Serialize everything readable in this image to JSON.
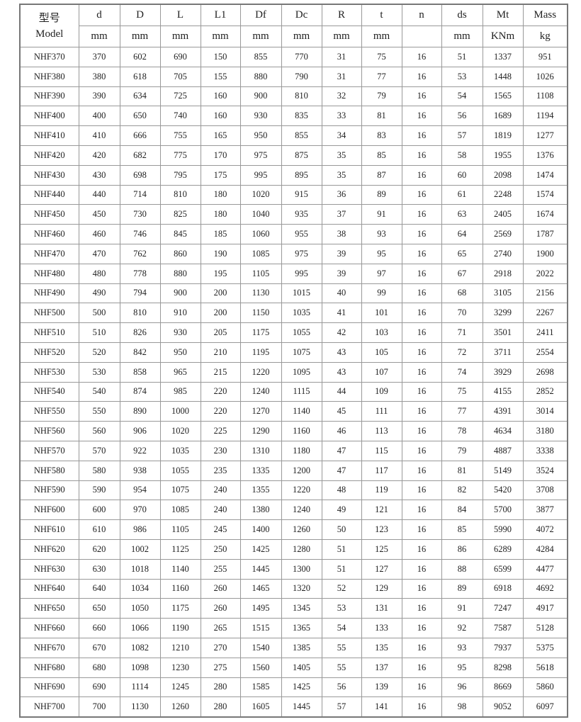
{
  "table": {
    "model_header": [
      "型号",
      "Model"
    ],
    "columns": [
      {
        "name": "d",
        "unit": "mm"
      },
      {
        "name": "D",
        "unit": "mm"
      },
      {
        "name": "L",
        "unit": "mm"
      },
      {
        "name": "L1",
        "unit": "mm"
      },
      {
        "name": "Df",
        "unit": "mm"
      },
      {
        "name": "Dc",
        "unit": "mm"
      },
      {
        "name": "R",
        "unit": "mm"
      },
      {
        "name": "t",
        "unit": "mm"
      },
      {
        "name": "n"
      },
      {
        "name": "ds",
        "unit": "mm"
      },
      {
        "name": "Mt",
        "unit": "KNm"
      },
      {
        "name": "Mass",
        "unit": "kg"
      }
    ],
    "rows": [
      [
        "NHF370",
        370,
        602,
        690,
        150,
        855,
        770,
        31,
        75,
        16,
        51,
        1337,
        951
      ],
      [
        "NHF380",
        380,
        618,
        705,
        155,
        880,
        790,
        31,
        77,
        16,
        53,
        1448,
        1026
      ],
      [
        "NHF390",
        390,
        634,
        725,
        160,
        900,
        810,
        32,
        79,
        16,
        54,
        1565,
        1108
      ],
      [
        "NHF400",
        400,
        650,
        740,
        160,
        930,
        835,
        33,
        81,
        16,
        56,
        1689,
        1194
      ],
      [
        "NHF410",
        410,
        666,
        755,
        165,
        950,
        855,
        34,
        83,
        16,
        57,
        1819,
        1277
      ],
      [
        "NHF420",
        420,
        682,
        775,
        170,
        975,
        875,
        35,
        85,
        16,
        58,
        1955,
        1376
      ],
      [
        "NHF430",
        430,
        698,
        795,
        175,
        995,
        895,
        35,
        87,
        16,
        60,
        2098,
        1474
      ],
      [
        "NHF440",
        440,
        714,
        810,
        180,
        1020,
        915,
        36,
        89,
        16,
        61,
        2248,
        1574
      ],
      [
        "NHF450",
        450,
        730,
        825,
        180,
        1040,
        935,
        37,
        91,
        16,
        63,
        2405,
        1674
      ],
      [
        "NHF460",
        460,
        746,
        845,
        185,
        1060,
        955,
        38,
        93,
        16,
        64,
        2569,
        1787
      ],
      [
        "NHF470",
        470,
        762,
        860,
        190,
        1085,
        975,
        39,
        95,
        16,
        65,
        2740,
        1900
      ],
      [
        "NHF480",
        480,
        778,
        880,
        195,
        1105,
        995,
        39,
        97,
        16,
        67,
        2918,
        2022
      ],
      [
        "NHF490",
        490,
        794,
        900,
        200,
        1130,
        1015,
        40,
        99,
        16,
        68,
        3105,
        2156
      ],
      [
        "NHF500",
        500,
        810,
        910,
        200,
        1150,
        1035,
        41,
        101,
        16,
        70,
        3299,
        2267
      ],
      [
        "NHF510",
        510,
        826,
        930,
        205,
        1175,
        1055,
        42,
        103,
        16,
        71,
        3501,
        2411
      ],
      [
        "NHF520",
        520,
        842,
        950,
        210,
        1195,
        1075,
        43,
        105,
        16,
        72,
        3711,
        2554
      ],
      [
        "NHF530",
        530,
        858,
        965,
        215,
        1220,
        1095,
        43,
        107,
        16,
        74,
        3929,
        2698
      ],
      [
        "NHF540",
        540,
        874,
        985,
        220,
        1240,
        1115,
        44,
        109,
        16,
        75,
        4155,
        2852
      ],
      [
        "NHF550",
        550,
        890,
        1000,
        220,
        1270,
        1140,
        45,
        111,
        16,
        77,
        4391,
        3014
      ],
      [
        "NHF560",
        560,
        906,
        1020,
        225,
        1290,
        1160,
        46,
        113,
        16,
        78,
        4634,
        3180
      ],
      [
        "NHF570",
        570,
        922,
        1035,
        230,
        1310,
        1180,
        47,
        115,
        16,
        79,
        4887,
        3338
      ],
      [
        "NHF580",
        580,
        938,
        1055,
        235,
        1335,
        1200,
        47,
        117,
        16,
        81,
        5149,
        3524
      ],
      [
        "NHF590",
        590,
        954,
        1075,
        240,
        1355,
        1220,
        48,
        119,
        16,
        82,
        5420,
        3708
      ],
      [
        "NHF600",
        600,
        970,
        1085,
        240,
        1380,
        1240,
        49,
        121,
        16,
        84,
        5700,
        3877
      ],
      [
        "NHF610",
        610,
        986,
        1105,
        245,
        1400,
        1260,
        50,
        123,
        16,
        85,
        5990,
        4072
      ],
      [
        "NHF620",
        620,
        1002,
        1125,
        250,
        1425,
        1280,
        51,
        125,
        16,
        86,
        6289,
        4284
      ],
      [
        "NHF630",
        630,
        1018,
        1140,
        255,
        1445,
        1300,
        51,
        127,
        16,
        88,
        6599,
        4477
      ],
      [
        "NHF640",
        640,
        1034,
        1160,
        260,
        1465,
        1320,
        52,
        129,
        16,
        89,
        6918,
        4692
      ],
      [
        "NHF650",
        650,
        1050,
        1175,
        260,
        1495,
        1345,
        53,
        131,
        16,
        91,
        7247,
        4917
      ],
      [
        "NHF660",
        660,
        1066,
        1190,
        265,
        1515,
        1365,
        54,
        133,
        16,
        92,
        7587,
        5128
      ],
      [
        "NHF670",
        670,
        1082,
        1210,
        270,
        1540,
        1385,
        55,
        135,
        16,
        93,
        7937,
        5375
      ],
      [
        "NHF680",
        680,
        1098,
        1230,
        275,
        1560,
        1405,
        55,
        137,
        16,
        95,
        8298,
        5618
      ],
      [
        "NHF690",
        690,
        1114,
        1245,
        280,
        1585,
        1425,
        56,
        139,
        16,
        96,
        8669,
        5860
      ],
      [
        "NHF700",
        700,
        1130,
        1260,
        280,
        1605,
        1445,
        57,
        141,
        16,
        98,
        9052,
        6097
      ]
    ]
  }
}
